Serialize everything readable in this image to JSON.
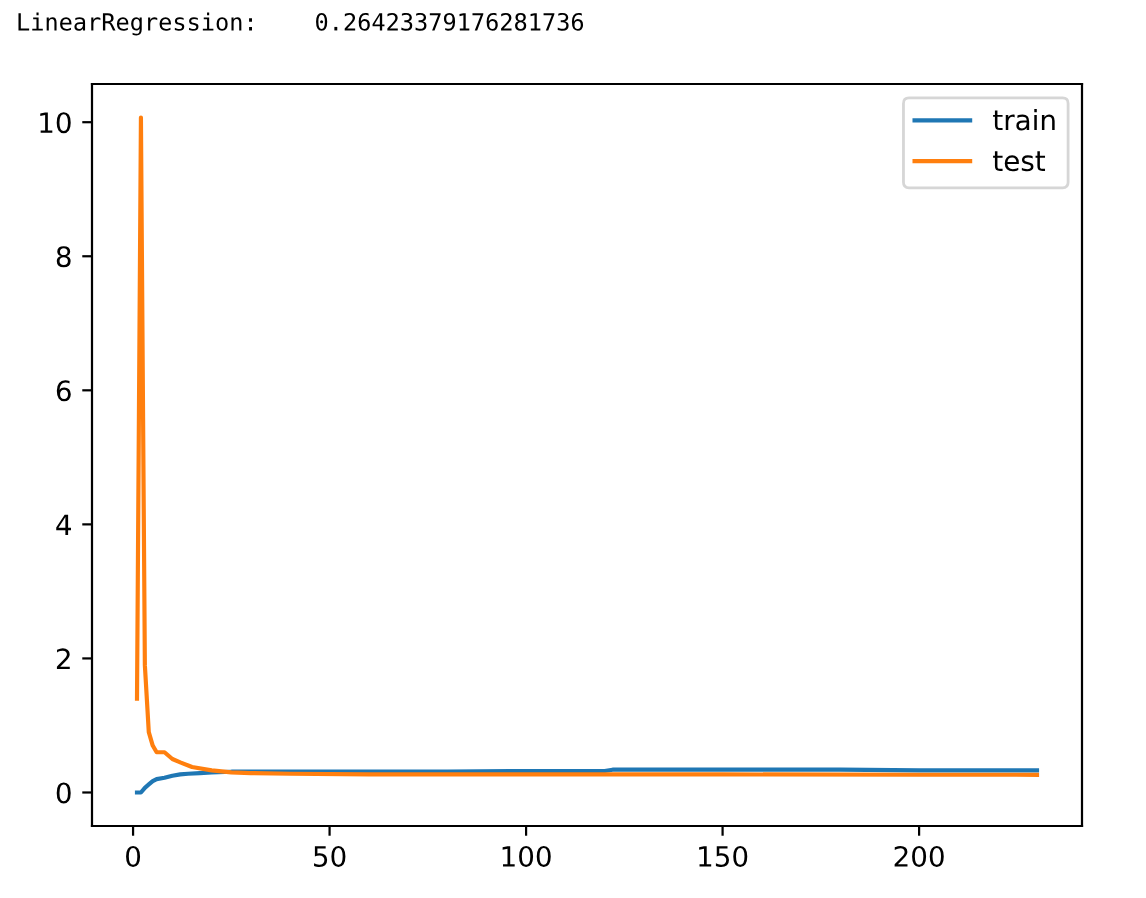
{
  "chart_data": {
    "type": "line",
    "annotations": [
      "LinearRegression:    0.26423379176281736"
    ],
    "series": [
      {
        "name": "train",
        "color": "#1f77b4",
        "x": [
          1,
          2,
          3,
          4,
          5,
          6,
          8,
          10,
          12,
          14,
          17,
          20,
          25,
          30,
          40,
          50,
          60,
          80,
          100,
          120,
          122,
          150,
          180,
          200,
          230
        ],
        "values": [
          0.0,
          0.0,
          0.07,
          0.12,
          0.17,
          0.2,
          0.22,
          0.25,
          0.27,
          0.28,
          0.29,
          0.3,
          0.31,
          0.31,
          0.31,
          0.31,
          0.31,
          0.31,
          0.32,
          0.32,
          0.34,
          0.34,
          0.34,
          0.33,
          0.33
        ]
      },
      {
        "name": "test",
        "color": "#ff7f0e",
        "x": [
          1,
          2,
          3,
          4,
          5,
          6,
          8,
          10,
          12,
          15,
          20,
          25,
          30,
          40,
          60,
          100,
          150,
          200,
          230
        ],
        "values": [
          1.4,
          10.07,
          1.9,
          0.9,
          0.7,
          0.6,
          0.6,
          0.5,
          0.45,
          0.38,
          0.33,
          0.3,
          0.29,
          0.28,
          0.27,
          0.27,
          0.27,
          0.265,
          0.264
        ]
      }
    ],
    "xlim": [
      -10.45,
      241.45
    ],
    "xticks": [
      0,
      50,
      100,
      150,
      200
    ],
    "ylim": [
      -0.5,
      10.57
    ],
    "yticks": [
      0,
      2,
      4,
      6,
      8,
      10
    ],
    "legend": "top right",
    "grid": false
  }
}
